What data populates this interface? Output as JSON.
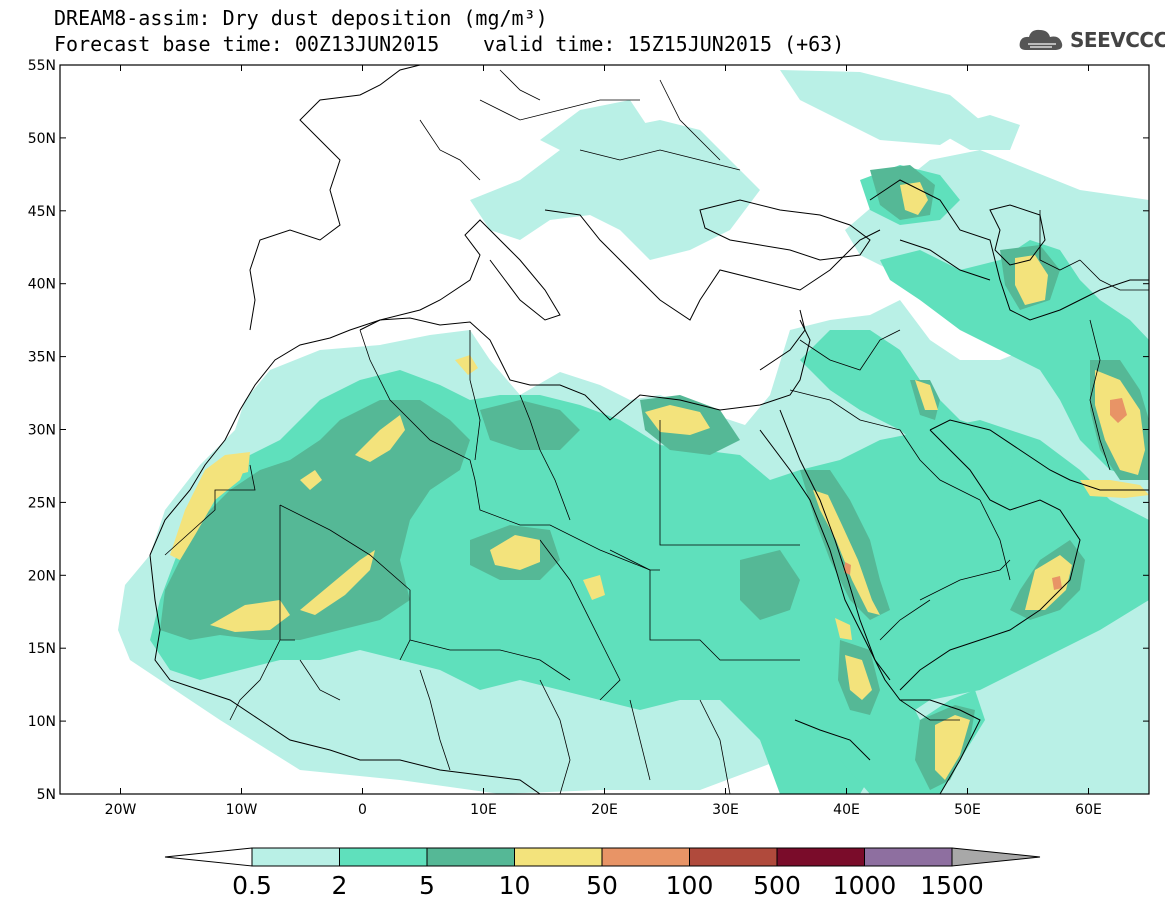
{
  "title": {
    "line1": "DREAM8-assim: Dry dust deposition (mg/m³)",
    "line2_base": "Forecast base time: 00Z13JUN2015",
    "line2_valid": "valid time: 15Z15JUN2015 (+63)"
  },
  "logo": {
    "text": "SEEVCCC",
    "icon": "cloud-icon"
  },
  "axes": {
    "lat_labels": [
      "55N",
      "50N",
      "45N",
      "40N",
      "35N",
      "30N",
      "25N",
      "20N",
      "15N",
      "10N",
      "5N"
    ],
    "lon_labels": [
      "20W",
      "10W",
      "0",
      "10E",
      "20E",
      "30E",
      "40E",
      "50E",
      "60E"
    ]
  },
  "legend": {
    "labels": [
      "0.5",
      "2",
      "5",
      "10",
      "50",
      "100",
      "500",
      "1000",
      "1500"
    ],
    "colors": [
      "#b9f0e6",
      "#5fe0bc",
      "#55b896",
      "#f3e37c",
      "#e89466",
      "#b04a3c",
      "#7a0c2a",
      "#8e6fa0",
      "#a8a8a8"
    ]
  }
}
